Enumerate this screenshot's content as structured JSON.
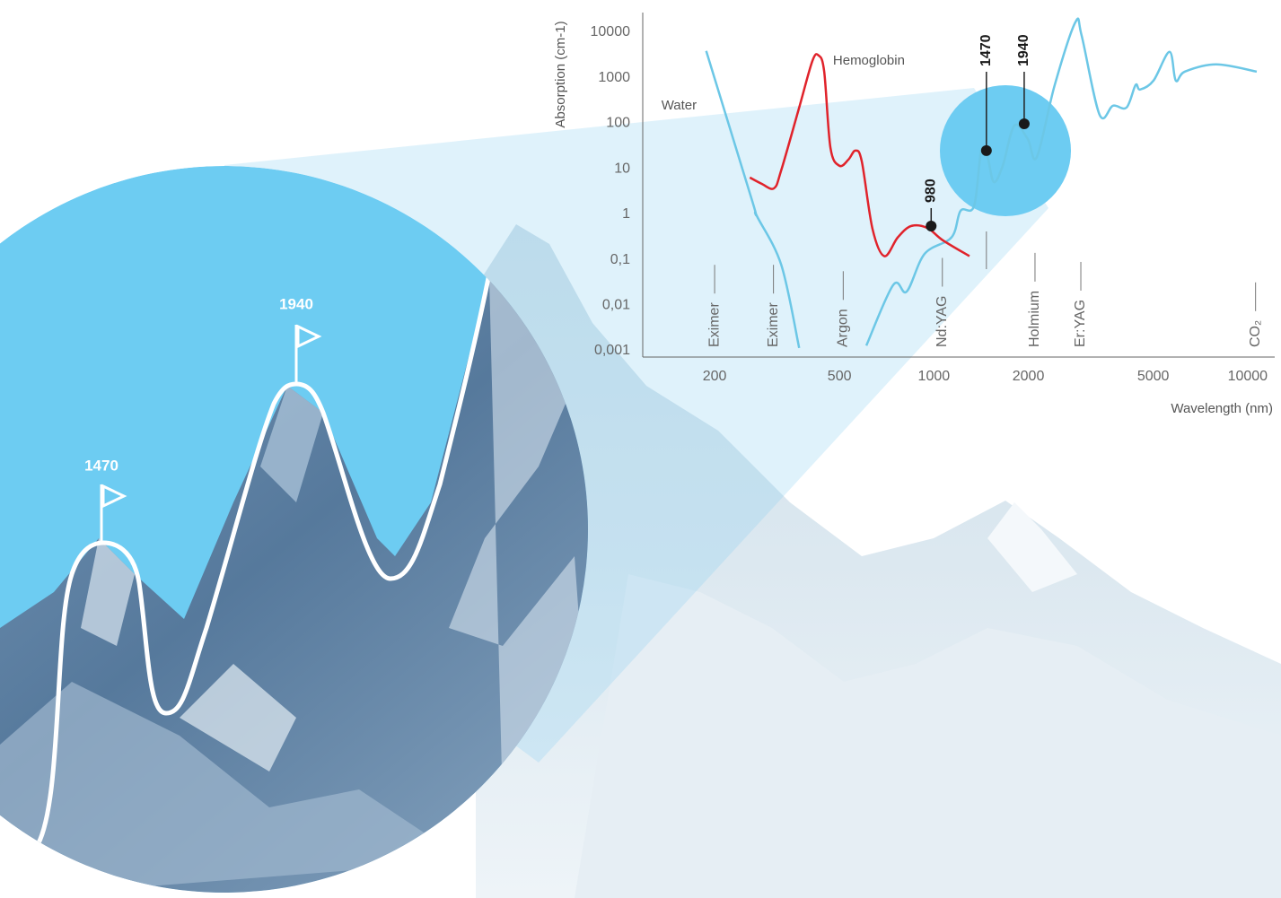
{
  "chart_data": {
    "type": "line",
    "xscale": "log",
    "yscale": "log",
    "xlim": [
      118,
      12200
    ],
    "ylim": [
      0.001,
      27000
    ],
    "xticks": [
      200,
      500,
      1000,
      2000,
      5000,
      10000
    ],
    "yticks": [
      {
        "value": 0.001,
        "label": "0,001"
      },
      {
        "value": 0.01,
        "label": "0,01"
      },
      {
        "value": 0.1,
        "label": "0,1"
      },
      1,
      10,
      100,
      1000,
      10000
    ],
    "xlabel": "Wavelength (nm)",
    "ylabel": "Absorption (cm-1)",
    "grid": false,
    "series": [
      {
        "name": "Water",
        "color": "#6cc7e6",
        "x": [
          188,
          264,
          272,
          326,
          372,
          null,
          609,
          742,
          819,
          934,
          1138,
          1216,
          1342,
          1415,
          1482,
          1552,
          1657,
          1805,
          1991,
          2128,
          2427,
          2825,
          2958,
          3373,
          3724,
          4111,
          4394,
          4540,
          5012,
          5636,
          5902,
          6310,
          7943,
          10690
        ],
        "values": [
          3870,
          1.88,
          0.95,
          0.078,
          0.00115,
          null,
          0.0013,
          0.028,
          0.02,
          0.135,
          0.31,
          1.19,
          1.5,
          25,
          18,
          5.1,
          11.6,
          89,
          45,
          18,
          690,
          16600,
          8380,
          154,
          243,
          221,
          690,
          550,
          865,
          3700,
          865,
          1360,
          1960,
          1360
        ]
      },
      {
        "name": "Hemoglobin",
        "color": "#e0232b",
        "x": [
          259,
          282,
          309,
          326,
          372,
          410,
          429,
          447,
          468,
          500,
          534,
          562,
          589,
          637,
          695,
          767,
          846,
          953,
          1066,
          1298
        ],
        "values": [
          6.4,
          4.7,
          3.7,
          9.2,
          221,
          2350,
          3080,
          1360,
          28.7,
          11.6,
          15.9,
          25,
          14.5,
          0.48,
          0.12,
          0.31,
          0.55,
          0.5,
          0.27,
          0.12
        ]
      }
    ],
    "markers": {
      "names": [
        "Eximer",
        "Eximer",
        "Argon",
        "Nd:YAG",
        null,
        "Holmium",
        "Er:YAG",
        "CO₂"
      ],
      "wavelengths": [
        200,
        308,
        514,
        1064,
        1470,
        2100,
        2940,
        10600
      ]
    },
    "annotations": [
      {
        "x": 980,
        "y": 0.55
      },
      {
        "x": 1470,
        "y": 25
      },
      {
        "x": 1940,
        "y": 97
      }
    ]
  },
  "illustration": {
    "flags": [
      1470,
      1940
    ]
  }
}
